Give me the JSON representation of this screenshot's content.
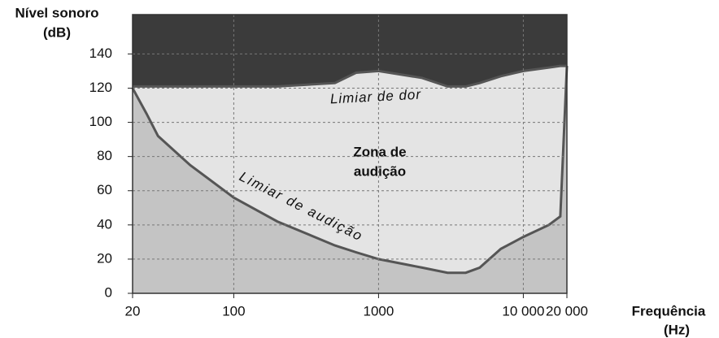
{
  "chart_data": {
    "type": "area",
    "y_label": [
      "Nível sonoro",
      "(dB)"
    ],
    "x_label": [
      "Frequência",
      "(Hz)"
    ],
    "annotation": [
      "Zona de",
      "audição"
    ],
    "x": [
      20,
      25,
      30,
      50,
      100,
      200,
      500,
      700,
      1000,
      2000,
      3000,
      4000,
      5000,
      7000,
      10000,
      15000,
      18000,
      20000
    ],
    "series": [
      {
        "name": "Limiar de audição",
        "color": "#555555",
        "fill": "#c4c4c4",
        "values": [
          120,
          105,
          92,
          75,
          56,
          42,
          28,
          24,
          20,
          15,
          12,
          12,
          15,
          26,
          33,
          40,
          45,
          133
        ]
      },
      {
        "name": "Limiar de dor",
        "color": "#555555",
        "fill": "#3b3b3b",
        "values": [
          121,
          121,
          121,
          121,
          121,
          121,
          123,
          129,
          130,
          126,
          121,
          121,
          123,
          127,
          130,
          132,
          133,
          133
        ]
      }
    ],
    "background": "#e4e4e4",
    "xlog": true,
    "xlim": [
      20,
      20000
    ],
    "xticks": [
      20,
      100,
      1000,
      {
        "value": 10000,
        "label": "10 000"
      },
      {
        "value": 20000,
        "label": "20 000"
      }
    ],
    "ylim": [
      0,
      163
    ],
    "yticks": [
      0,
      20,
      40,
      60,
      80,
      100,
      120,
      140
    ],
    "grid": true
  }
}
